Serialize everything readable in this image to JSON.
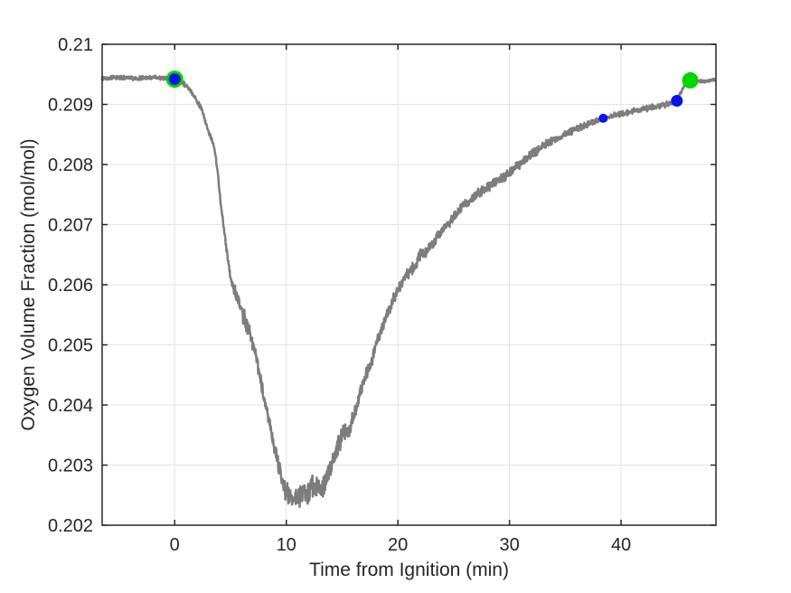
{
  "chart_data": {
    "type": "line",
    "title": "",
    "xlabel": "Time from Ignition (min)",
    "ylabel": "Oxygen Volume Fraction (mol/mol)",
    "xlim": [
      -6.5,
      48.5
    ],
    "ylim": [
      0.202,
      0.21
    ],
    "xticks": [
      0,
      10,
      20,
      30,
      40
    ],
    "xtick_labels": [
      "0",
      "10",
      "20",
      "30",
      "40"
    ],
    "yticks": [
      0.202,
      0.203,
      0.204,
      0.205,
      0.206,
      0.207,
      0.208,
      0.209,
      0.21
    ],
    "ytick_labels": [
      "0.202",
      "0.203",
      "0.204",
      "0.205",
      "0.206",
      "0.207",
      "0.208",
      "0.209",
      "0.21"
    ],
    "grid": true,
    "legend": null,
    "colors": {
      "axis": "#262626",
      "grid": "#e3e3e3",
      "trace": "#7d7d7d",
      "marker_green": "#00d400",
      "marker_blue": "#0a14e6",
      "background": "#ffffff"
    },
    "series": [
      {
        "name": "oxygen-volume-fraction-trace",
        "line_width": 2.5,
        "sample_step_min": 0.03,
        "noise_seed": 13,
        "control_points": [
          [
            -6.5,
            0.20944,
            2.5e-05
          ],
          [
            -5.0,
            0.20945,
            2.5e-05
          ],
          [
            -3.5,
            0.20943,
            2.5e-05
          ],
          [
            -2.0,
            0.20945,
            2.5e-05
          ],
          [
            -1.0,
            0.20944,
            2.5e-05
          ],
          [
            0.0,
            0.20942,
            2.5e-05
          ],
          [
            0.6,
            0.20938,
            3e-05
          ],
          [
            1.2,
            0.20928,
            3e-05
          ],
          [
            1.8,
            0.20912,
            3e-05
          ],
          [
            2.4,
            0.20893,
            3e-05
          ],
          [
            2.8,
            0.20868,
            3e-05
          ],
          [
            3.1,
            0.2085,
            3e-05
          ],
          [
            3.4,
            0.20838,
            3e-05
          ],
          [
            3.7,
            0.2081,
            4e-05
          ],
          [
            3.9,
            0.20778,
            4e-05
          ],
          [
            4.1,
            0.2074,
            4e-05
          ],
          [
            4.4,
            0.20695,
            4e-05
          ],
          [
            4.7,
            0.2065,
            5e-05
          ],
          [
            5.0,
            0.20612,
            6e-05
          ],
          [
            5.4,
            0.20588,
            8e-05
          ],
          [
            5.8,
            0.2057,
            0.0001
          ],
          [
            6.1,
            0.20552,
            0.00012
          ],
          [
            6.4,
            0.20535,
            0.00012
          ],
          [
            6.8,
            0.20516,
            9e-05
          ],
          [
            7.2,
            0.20488,
            8e-05
          ],
          [
            7.6,
            0.2045,
            8e-05
          ],
          [
            8.0,
            0.20415,
            8e-05
          ],
          [
            8.4,
            0.20378,
            8e-05
          ],
          [
            8.8,
            0.20342,
            8e-05
          ],
          [
            9.2,
            0.20308,
            9e-05
          ],
          [
            9.6,
            0.20275,
            0.00011
          ],
          [
            10.0,
            0.20254,
            0.00013
          ],
          [
            10.4,
            0.20246,
            0.00014
          ],
          [
            10.9,
            0.20248,
            0.00014
          ],
          [
            11.4,
            0.20252,
            0.00014
          ],
          [
            11.9,
            0.20254,
            0.00015
          ],
          [
            12.4,
            0.20268,
            0.00016
          ],
          [
            12.9,
            0.20258,
            0.00015
          ],
          [
            13.4,
            0.20266,
            0.00013
          ],
          [
            13.9,
            0.20292,
            0.00013
          ],
          [
            14.5,
            0.20328,
            0.00013
          ],
          [
            15.1,
            0.2035,
            0.00012
          ],
          [
            15.6,
            0.2036,
            0.00011
          ],
          [
            16.1,
            0.20385,
            9e-05
          ],
          [
            16.6,
            0.2042,
            8e-05
          ],
          [
            17.1,
            0.20448,
            8e-05
          ],
          [
            17.7,
            0.20478,
            8e-05
          ],
          [
            18.2,
            0.20508,
            8e-05
          ],
          [
            18.7,
            0.20535,
            8e-05
          ],
          [
            19.3,
            0.20562,
            8e-05
          ],
          [
            19.9,
            0.20588,
            8e-05
          ],
          [
            20.6,
            0.2061,
            7e-05
          ],
          [
            21.4,
            0.2063,
            8e-05
          ],
          [
            22.1,
            0.2065,
            9e-05
          ],
          [
            22.6,
            0.20655,
            8e-05
          ],
          [
            23.2,
            0.20668,
            7e-05
          ],
          [
            24.0,
            0.20692,
            7e-05
          ],
          [
            24.8,
            0.20708,
            7e-05
          ],
          [
            25.6,
            0.20726,
            7e-05
          ],
          [
            26.5,
            0.20742,
            6e-05
          ],
          [
            27.5,
            0.20756,
            6e-05
          ],
          [
            28.5,
            0.20768,
            6e-05
          ],
          [
            29.5,
            0.2078,
            6e-05
          ],
          [
            30.5,
            0.20794,
            6e-05
          ],
          [
            31.5,
            0.2081,
            6e-05
          ],
          [
            32.5,
            0.20824,
            6e-05
          ],
          [
            33.6,
            0.20838,
            5e-05
          ],
          [
            34.9,
            0.2085,
            5e-05
          ],
          [
            36.3,
            0.20862,
            5e-05
          ],
          [
            37.6,
            0.20871,
            4e-05
          ],
          [
            38.4,
            0.20877,
            4e-05
          ],
          [
            39.5,
            0.20882,
            4e-05
          ],
          [
            40.8,
            0.20887,
            4e-05
          ],
          [
            42.2,
            0.20893,
            4e-05
          ],
          [
            43.5,
            0.20898,
            4e-05
          ],
          [
            44.5,
            0.20902,
            3e-05
          ],
          [
            45.0,
            0.20906,
            3e-05
          ],
          [
            45.3,
            0.20918,
            3e-05
          ],
          [
            45.7,
            0.20933,
            3e-05
          ],
          [
            46.1,
            0.2094,
            2e-05
          ],
          [
            46.6,
            0.2094,
            2e-05
          ],
          [
            47.4,
            0.20938,
            2e-05
          ],
          [
            48.4,
            0.20941,
            2e-05
          ]
        ]
      }
    ],
    "markers": [
      {
        "name": "event-marker-green-start",
        "x": 0.0,
        "y": 0.20942,
        "color_key": "marker_green",
        "radius": 9.5
      },
      {
        "name": "event-marker-blue-start",
        "x": 0.0,
        "y": 0.20942,
        "color_key": "marker_blue",
        "radius": 6.5
      },
      {
        "name": "event-marker-blue-mid",
        "x": 38.4,
        "y": 0.20877,
        "color_key": "marker_blue",
        "radius": 5.0
      },
      {
        "name": "event-marker-blue-late",
        "x": 45.0,
        "y": 0.20906,
        "color_key": "marker_blue",
        "radius": 6.5
      },
      {
        "name": "event-marker-green-end",
        "x": 46.2,
        "y": 0.2094,
        "color_key": "marker_green",
        "radius": 9.0
      }
    ]
  }
}
